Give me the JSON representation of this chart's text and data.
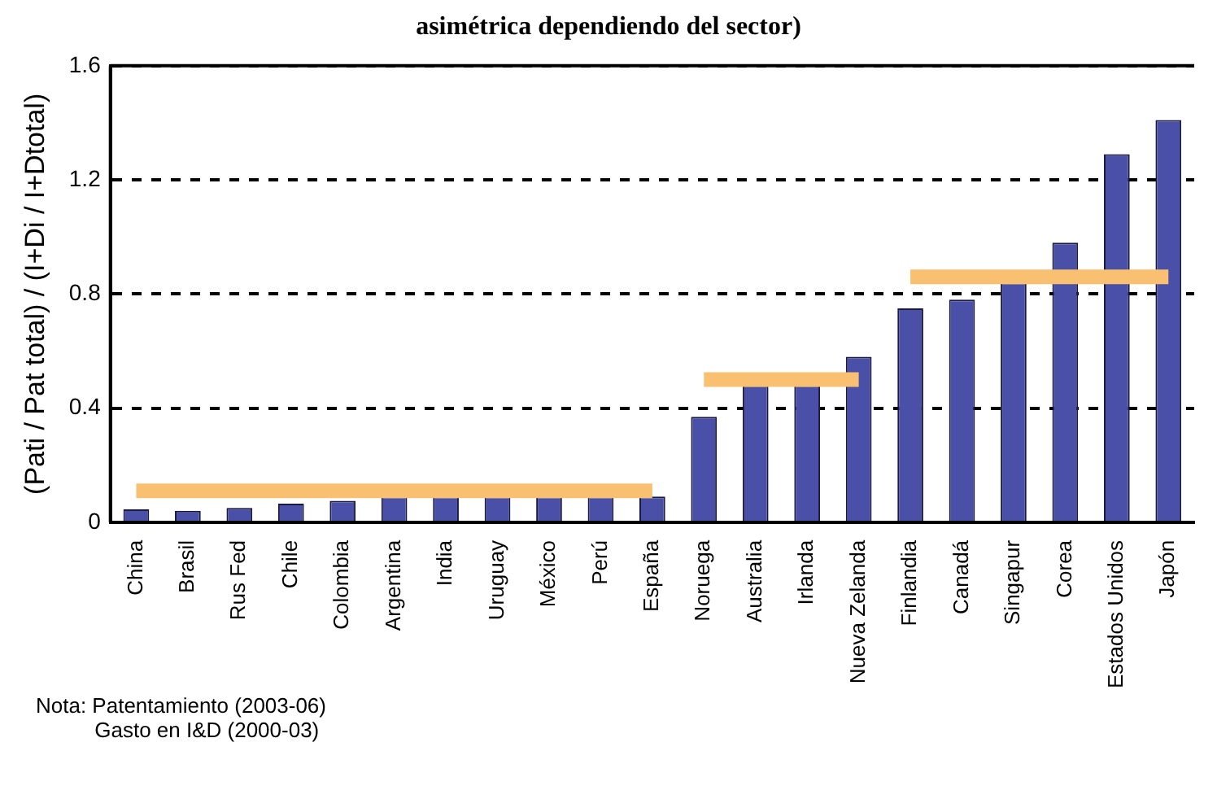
{
  "chart_data": {
    "type": "bar",
    "title": "asimétrica dependiendo del sector)",
    "ylabel": "(Pati / Pat total) / (I+Di / I+Dtotal)",
    "categories": [
      "China",
      "Brasil",
      "Rus Fed",
      "Chile",
      "Colombia",
      "Argentina",
      "India",
      "Uruguay",
      "México",
      "Perú",
      "España",
      "Noruega",
      "Australia",
      "Irlanda",
      "Nueva Zelanda",
      "Finlandia",
      "Canadá",
      "Singapur",
      "Corea",
      "Estados Unidos",
      "Japón"
    ],
    "series": [
      {
        "color": "#4a50a8",
        "values": [
          0.045,
          0.04,
          0.05,
          0.065,
          0.075,
          0.09,
          0.09,
          0.09,
          0.09,
          0.09,
          0.09,
          0.37,
          0.48,
          0.48,
          0.58,
          0.75,
          0.78,
          0.84,
          0.98,
          1.29,
          1.41
        ]
      },
      {
        "type": "line",
        "color": "#f8c070",
        "values": [
          0.11,
          0.11,
          0.11,
          0.11,
          0.11,
          0.11,
          0.11,
          0.11,
          0.11,
          0.11,
          0.11,
          null,
          null,
          null,
          null,
          null,
          null,
          null,
          null,
          null,
          null
        ]
      },
      {
        "type": "line",
        "color": "#f8c070",
        "values": [
          null,
          null,
          null,
          null,
          null,
          null,
          null,
          null,
          null,
          null,
          null,
          0.5,
          0.5,
          0.5,
          0.5,
          null,
          null,
          null,
          null,
          null,
          null
        ]
      },
      {
        "type": "line",
        "color": "#f8c070",
        "values": [
          null,
          null,
          null,
          null,
          null,
          null,
          null,
          null,
          null,
          null,
          null,
          null,
          null,
          null,
          null,
          0.86,
          0.86,
          0.86,
          0.86,
          0.86,
          0.86
        ]
      }
    ],
    "ylim": [
      0,
      1.6
    ],
    "yticks": [
      0,
      0.4,
      0.8,
      1.2,
      1.6
    ],
    "grid": "y",
    "legend": false,
    "annotations": [
      "Nota: Patentamiento (2003-06)\n          Gasto en I&D (2000-03)"
    ]
  }
}
